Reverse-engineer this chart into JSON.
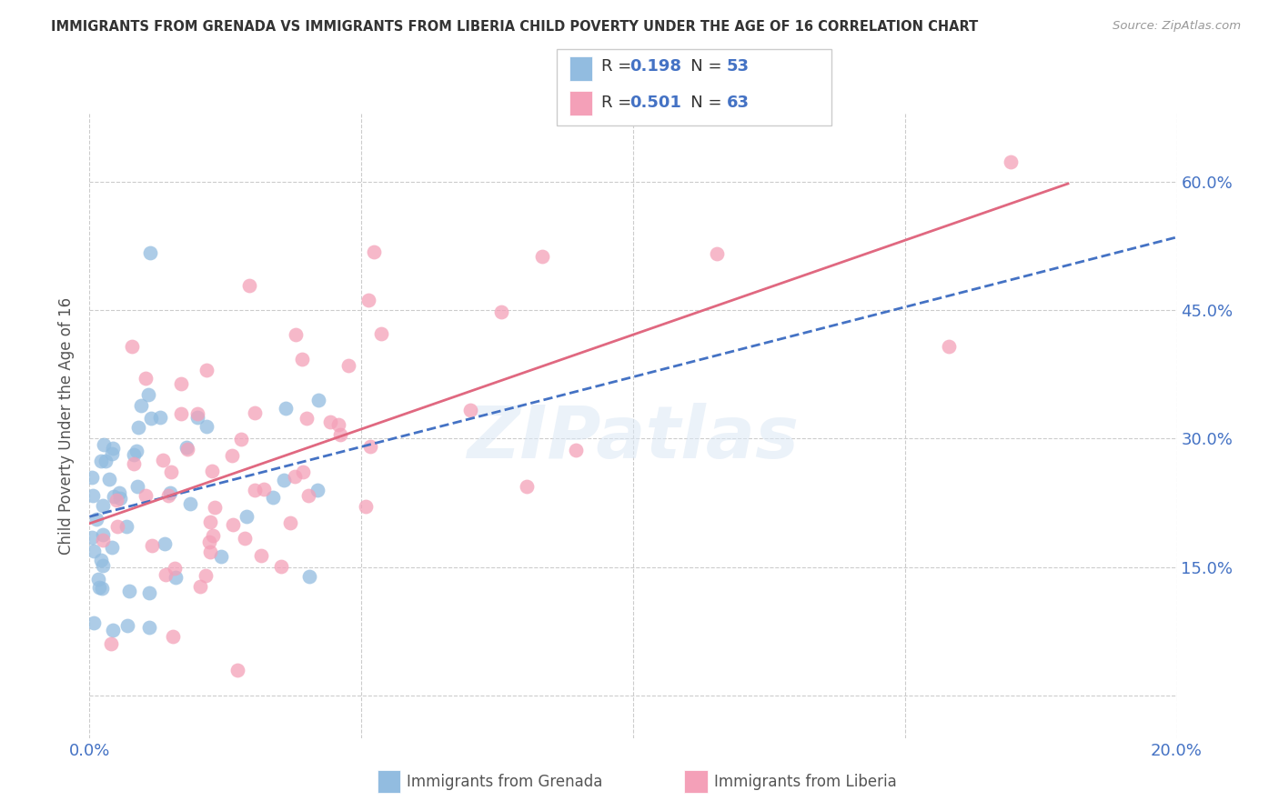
{
  "title": "IMMIGRANTS FROM GRENADA VS IMMIGRANTS FROM LIBERIA CHILD POVERTY UNDER THE AGE OF 16 CORRELATION CHART",
  "source": "Source: ZipAtlas.com",
  "ylabel": "Child Poverty Under the Age of 16",
  "grenada_label": "Immigrants from Grenada",
  "liberia_label": "Immigrants from Liberia",
  "grenada_R": 0.198,
  "grenada_N": 53,
  "liberia_R": 0.501,
  "liberia_N": 63,
  "grenada_color": "#92bce0",
  "liberia_color": "#f4a0b8",
  "grenada_line_color": "#4472c4",
  "liberia_line_color": "#e06880",
  "tick_color": "#4472c4",
  "grid_color": "#cccccc",
  "title_color": "#333333",
  "label_color": "#4472c4",
  "watermark": "ZIPatlas",
  "xlim": [
    0.0,
    0.2
  ],
  "ylim": [
    -0.05,
    0.68
  ],
  "yticks": [
    0.0,
    0.15,
    0.3,
    0.45,
    0.6
  ],
  "right_ytick_labels": [
    "",
    "15.0%",
    "30.0%",
    "45.0%",
    "60.0%"
  ],
  "xtick_labels": [
    "0.0%",
    "",
    "",
    "",
    "20.0%"
  ]
}
